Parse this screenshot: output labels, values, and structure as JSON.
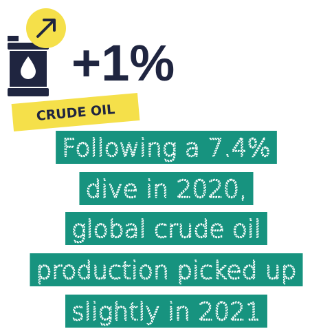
{
  "stat": "+1%",
  "label": "CRUDE OIL",
  "description_lines": [
    "Following a 7.4%",
    "dive in 2020,",
    "global crude oil",
    "production picked up",
    "slightly in 2021"
  ]
}
